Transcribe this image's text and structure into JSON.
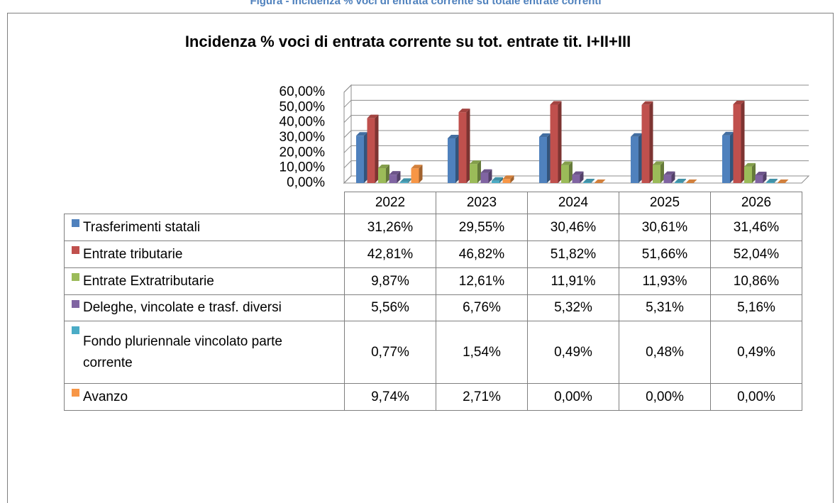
{
  "caption": "Figura - Incidenza % voci di entrata corrente su totale entrate correnti",
  "chart_data": {
    "type": "bar3d",
    "title": "Incidenza % voci di entrata corrente su tot. entrate tit. I+II+III",
    "categories": [
      "2022",
      "2023",
      "2024",
      "2025",
      "2026"
    ],
    "ylim": [
      0,
      60
    ],
    "yticks": [
      {
        "value": 0,
        "label": "0,00%"
      },
      {
        "value": 10,
        "label": "10,00%"
      },
      {
        "value": 20,
        "label": "20,00%"
      },
      {
        "value": 30,
        "label": "30,00%"
      },
      {
        "value": 40,
        "label": "40,00%"
      },
      {
        "value": 50,
        "label": "50,00%"
      },
      {
        "value": 60,
        "label": "60,00%"
      }
    ],
    "grid": true,
    "series": [
      {
        "name": "Trasferimenti statali",
        "color": "#4f81bd",
        "values": [
          31.26,
          29.55,
          30.46,
          30.61,
          31.46
        ],
        "value_labels": [
          "31,26%",
          "29,55%",
          "30,46%",
          "30,61%",
          "31,46%"
        ]
      },
      {
        "name": "Entrate tributarie",
        "color": "#c0504d",
        "values": [
          42.81,
          46.82,
          51.82,
          51.66,
          52.04
        ],
        "value_labels": [
          "42,81%",
          "46,82%",
          "51,82%",
          "51,66%",
          "52,04%"
        ]
      },
      {
        "name": "Entrate Extratributarie",
        "color": "#9bbb59",
        "values": [
          9.87,
          12.61,
          11.91,
          11.93,
          10.86
        ],
        "value_labels": [
          "9,87%",
          "12,61%",
          "11,91%",
          "11,93%",
          "10,86%"
        ]
      },
      {
        "name": "Deleghe, vincolate e trasf. diversi",
        "color": "#8064a2",
        "values": [
          5.56,
          6.76,
          5.32,
          5.31,
          5.16
        ],
        "value_labels": [
          "5,56%",
          "6,76%",
          "5,32%",
          "5,31%",
          "5,16%"
        ]
      },
      {
        "name": "Fondo pluriennale vincolato parte corrente",
        "color": "#4bacc6",
        "values": [
          0.77,
          1.54,
          0.49,
          0.48,
          0.49
        ],
        "value_labels": [
          "0,77%",
          "1,54%",
          "0,49%",
          "0,48%",
          "0,49%"
        ]
      },
      {
        "name": "Avanzo",
        "color": "#f79646",
        "values": [
          9.74,
          2.71,
          0.0,
          0.0,
          0.0
        ],
        "value_labels": [
          "9,74%",
          "2,71%",
          "0,00%",
          "0,00%",
          "0,00%"
        ]
      }
    ]
  }
}
